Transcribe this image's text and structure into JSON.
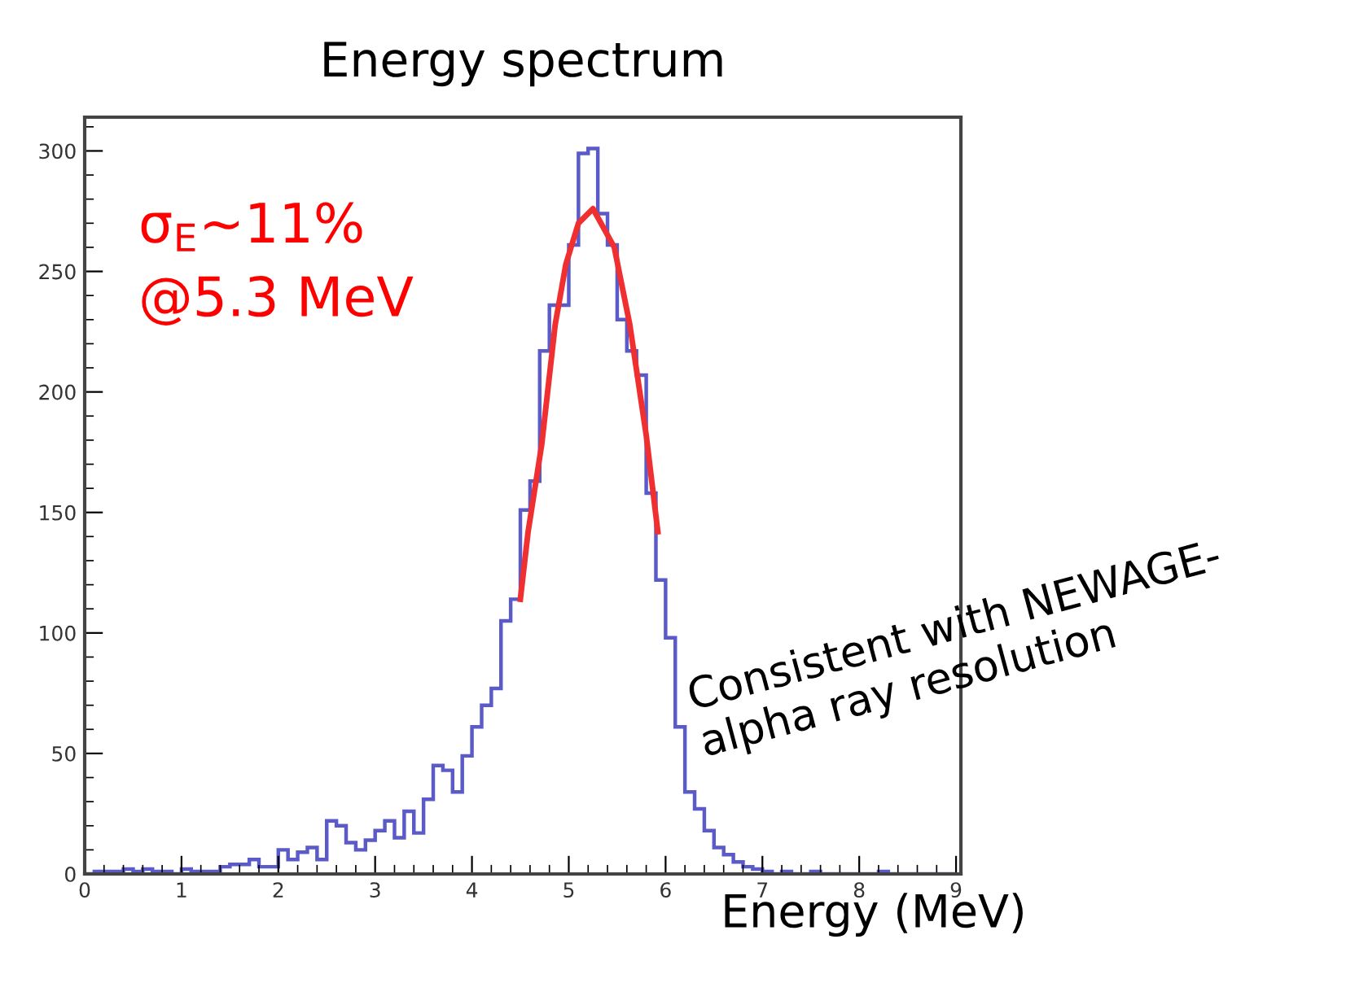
{
  "chart_data": {
    "type": "histogram",
    "title": "Energy spectrum",
    "xlabel": "Energy (MeV)",
    "bins": [
      0,
      0.1,
      0.2,
      0.3,
      0.4,
      0.5,
      0.6,
      0.7,
      0.8,
      0.9,
      1,
      1.1,
      1.2,
      1.3,
      1.4,
      1.5,
      1.6,
      1.7,
      1.8,
      1.9,
      2,
      2.1,
      2.2,
      2.3,
      2.4,
      2.5,
      2.6,
      2.7,
      2.8,
      2.9,
      3,
      3.1,
      3.2,
      3.3,
      3.4,
      3.5,
      3.6,
      3.7,
      3.8,
      3.9,
      4,
      4.1,
      4.2,
      4.3,
      4.4,
      4.5,
      4.6,
      4.7,
      4.8,
      4.9,
      5,
      5.1,
      5.2,
      5.3,
      5.4,
      5.5,
      5.6,
      5.7,
      5.8,
      5.9,
      6,
      6.1,
      6.2,
      6.3,
      6.4,
      6.5,
      6.6,
      6.7,
      6.8,
      6.9,
      7,
      7.1,
      7.2,
      7.3,
      7.4,
      7.5,
      7.6,
      7.7,
      7.8,
      7.9,
      8,
      8.1,
      8.2,
      8.3,
      8.4,
      8.5,
      8.6,
      8.7,
      8.8,
      8.9,
      9
    ],
    "series": [
      {
        "color": "#5a5ac8",
        "values": [
          0,
          1,
          1,
          1,
          2,
          1,
          2,
          1,
          1,
          0,
          2,
          1,
          1,
          1,
          3,
          4,
          4,
          6,
          3,
          3,
          10,
          6,
          9,
          11,
          6,
          22,
          20,
          13,
          10,
          14,
          18,
          22,
          15,
          26,
          17,
          31,
          45,
          43,
          34,
          49,
          61,
          70,
          77,
          105,
          114,
          151,
          163,
          217,
          236,
          236,
          261,
          299,
          301,
          274,
          261,
          230,
          217,
          207,
          158,
          122,
          98,
          61,
          34,
          27,
          18,
          11,
          8,
          5,
          3,
          2,
          1,
          0,
          1,
          0,
          0,
          1,
          0,
          0,
          0,
          0,
          0,
          0,
          1,
          0,
          0,
          0,
          0,
          0,
          0,
          0
        ]
      },
      {
        "type": "line",
        "color": "#f03030",
        "x": [
          4.5,
          4.58,
          4.72,
          4.86,
          4.97,
          5.1,
          5.25,
          5.47,
          5.63,
          5.8,
          5.92
        ],
        "values": [
          114,
          142,
          178,
          228,
          253,
          270,
          276,
          260,
          228,
          182,
          142
        ]
      }
    ],
    "xlim": [
      0,
      9.05
    ],
    "xticks": [
      0,
      1,
      2,
      3,
      4,
      5,
      6,
      7,
      8,
      9
    ],
    "ylim": [
      0,
      314
    ],
    "yticks": [
      0,
      50,
      100,
      150,
      200,
      250,
      300
    ],
    "grid": false,
    "annotations": [
      "σ$_{E}$∼11%",
      "@5.3 MeV",
      "Consistent with NEWAGE-\nalpha ray resolution"
    ]
  }
}
